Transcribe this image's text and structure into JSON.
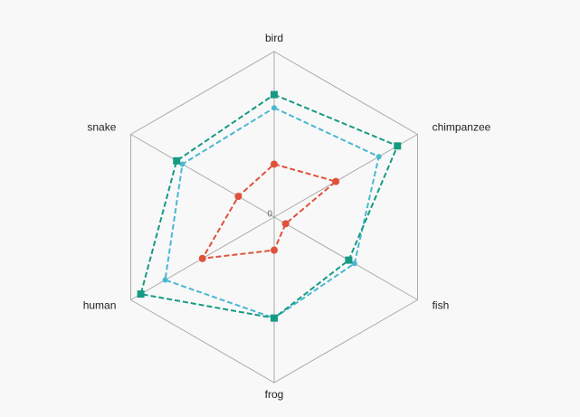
{
  "chart_data": {
    "type": "radar",
    "categories": [
      "bird",
      "chimpanzee",
      "fish",
      "frog",
      "human",
      "snake"
    ],
    "rlim": [
      0,
      100
    ],
    "rticks": [
      0
    ],
    "series": [
      {
        "color": "#e0513a",
        "marker": "circle",
        "values": [
          32,
          43,
          8,
          20,
          50,
          25
        ]
      },
      {
        "color": "#4ab8d1",
        "marker": "circle",
        "values": [
          66,
          73,
          56,
          61,
          76,
          64
        ]
      },
      {
        "color": "#169a83",
        "marker": "square",
        "values": [
          74,
          86,
          52,
          61,
          93,
          68
        ]
      }
    ]
  }
}
